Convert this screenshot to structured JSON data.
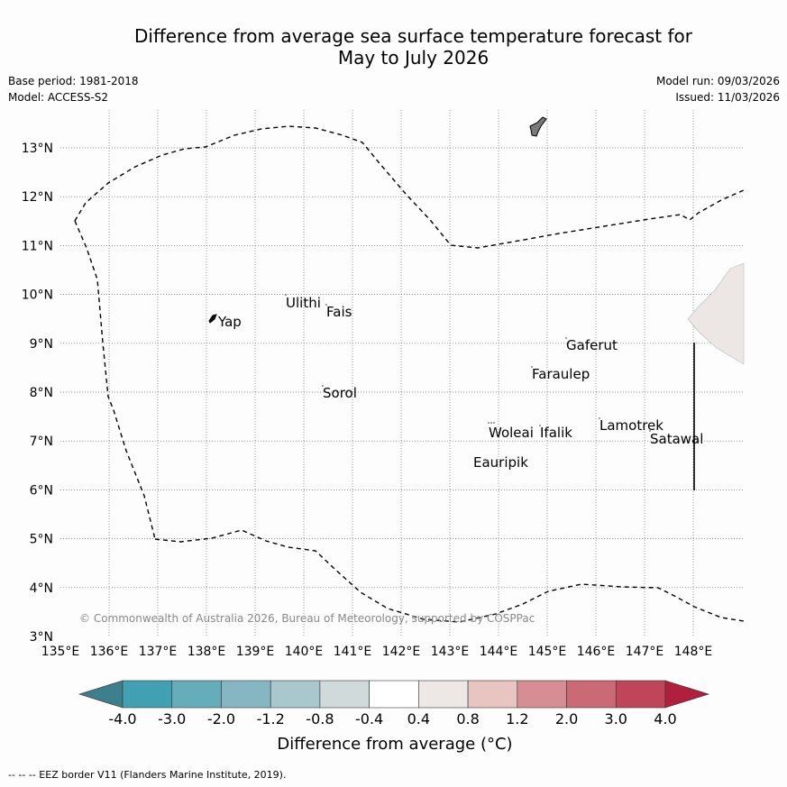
{
  "title": {
    "line1": "Difference from average sea surface temperature forecast for",
    "line2": "May to July 2026"
  },
  "meta": {
    "base_period": "Base period: 1981-2018",
    "model": "Model: ACCESS-S2",
    "model_run": "Model run: 09/03/2026",
    "issued": "Issued: 11/03/2026"
  },
  "map": {
    "lon_ticks": [
      "135°E",
      "136°E",
      "137°E",
      "138°E",
      "139°E",
      "140°E",
      "141°E",
      "142°E",
      "143°E",
      "144°E",
      "145°E",
      "146°E",
      "147°E",
      "148°E"
    ],
    "lat_ticks": [
      "3°N",
      "4°N",
      "5°N",
      "6°N",
      "7°N",
      "8°N",
      "9°N",
      "10°N",
      "11°N",
      "12°N",
      "13°N"
    ],
    "places": [
      {
        "name": "Yap"
      },
      {
        "name": "Ulithi"
      },
      {
        "name": "Fais"
      },
      {
        "name": "Sorol"
      },
      {
        "name": "Gaferut"
      },
      {
        "name": "Faraulep"
      },
      {
        "name": "Woleai"
      },
      {
        "name": "Ifalik"
      },
      {
        "name": "Lamotrek"
      },
      {
        "name": "Satawal"
      },
      {
        "name": "Eauripik"
      }
    ],
    "copyright": "© Commonwealth of Australia 2026, Bureau of Meteorology, supported by COSPPac"
  },
  "colorbar": {
    "ticks": [
      "-4.0",
      "-3.0",
      "-2.0",
      "-1.2",
      "-0.8",
      "-0.4",
      "0.4",
      "0.8",
      "1.2",
      "2.0",
      "3.0",
      "4.0"
    ],
    "colors": [
      "#41a1b2",
      "#65adba",
      "#86b6c1",
      "#a8c8ce",
      "#d0dadb",
      "#ffffff",
      "#ede7e5",
      "#e8c5c1",
      "#d68d93",
      "#cb6a75",
      "#c04558"
    ],
    "low_color": "#3d7f8c",
    "high_color": "#b0203e",
    "label": "Difference from average (°C)"
  },
  "footnote": "--  --  -- EEZ border V11 (Flanders Marine Institute, 2019)."
}
